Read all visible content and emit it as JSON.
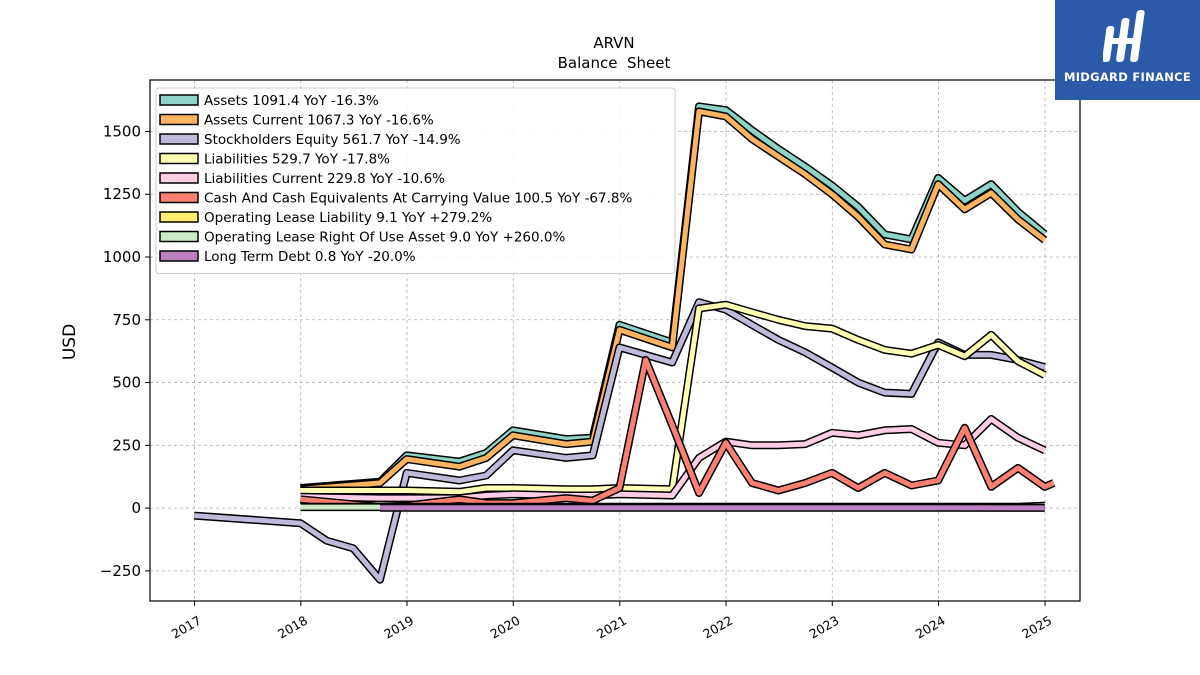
{
  "brand": {
    "name": "MIDGARD FINANCE",
    "bg_color": "#2a5aa8"
  },
  "chart_data": {
    "type": "line",
    "title": "ARVN",
    "subtitle": "Balance  Sheet",
    "ylabel": "USD",
    "xlabel": "",
    "ylim": [
      -370,
      1705
    ],
    "yticks": [
      -250,
      0,
      250,
      500,
      750,
      1000,
      1250,
      1500
    ],
    "ytick_labels": [
      "−250",
      "0",
      "250",
      "500",
      "750",
      "1000",
      "1250",
      "1500"
    ],
    "xlim": [
      "2016-08-01",
      "2025-05-01"
    ],
    "xticks": [
      "2017-01-01",
      "2018-01-01",
      "2019-01-01",
      "2020-01-01",
      "2021-01-01",
      "2022-01-01",
      "2023-01-01",
      "2024-01-01",
      "2025-01-01"
    ],
    "xtick_labels": [
      "2017",
      "2018",
      "2019",
      "2020",
      "2021",
      "2022",
      "2023",
      "2024",
      "2025"
    ],
    "grid": true,
    "legend_position": "top-left",
    "series": [
      {
        "name": "Assets",
        "legend": "Assets  1091.4 YoY -16.3%",
        "color": "#8dd3c7",
        "points": [
          [
            "2017-12-31",
            80
          ],
          [
            "2018-09-30",
            105
          ],
          [
            "2018-12-31",
            210
          ],
          [
            "2019-06-30",
            185
          ],
          [
            "2019-09-30",
            220
          ],
          [
            "2019-12-31",
            310
          ],
          [
            "2020-06-30",
            275
          ],
          [
            "2020-09-30",
            280
          ],
          [
            "2020-12-31",
            730
          ],
          [
            "2021-06-30",
            660
          ],
          [
            "2021-09-30",
            1600
          ],
          [
            "2021-12-31",
            1585
          ],
          [
            "2022-03-31",
            1505
          ],
          [
            "2022-06-30",
            1430
          ],
          [
            "2022-09-30",
            1360
          ],
          [
            "2022-12-31",
            1285
          ],
          [
            "2023-03-31",
            1200
          ],
          [
            "2023-06-30",
            1090
          ],
          [
            "2023-09-30",
            1070
          ],
          [
            "2023-12-31",
            1315
          ],
          [
            "2024-03-31",
            1225
          ],
          [
            "2024-06-30",
            1290
          ],
          [
            "2024-09-30",
            1180
          ],
          [
            "2024-12-31",
            1091.4
          ]
        ]
      },
      {
        "name": "Assets Current",
        "legend": "Assets Current  1067.3 YoY -16.6%",
        "color": "#fdb462",
        "points": [
          [
            "2017-12-31",
            75
          ],
          [
            "2018-09-30",
            100
          ],
          [
            "2018-12-31",
            195
          ],
          [
            "2019-06-30",
            165
          ],
          [
            "2019-09-30",
            200
          ],
          [
            "2019-12-31",
            290
          ],
          [
            "2020-06-30",
            255
          ],
          [
            "2020-09-30",
            265
          ],
          [
            "2020-12-31",
            710
          ],
          [
            "2021-06-30",
            640
          ],
          [
            "2021-09-30",
            1580
          ],
          [
            "2021-12-31",
            1560
          ],
          [
            "2022-03-31",
            1470
          ],
          [
            "2022-06-30",
            1400
          ],
          [
            "2022-09-30",
            1330
          ],
          [
            "2022-12-31",
            1250
          ],
          [
            "2023-03-31",
            1160
          ],
          [
            "2023-06-30",
            1050
          ],
          [
            "2023-09-30",
            1030
          ],
          [
            "2023-12-31",
            1290
          ],
          [
            "2024-03-31",
            1190
          ],
          [
            "2024-06-30",
            1255
          ],
          [
            "2024-09-30",
            1150
          ],
          [
            "2024-12-31",
            1067.3
          ]
        ]
      },
      {
        "name": "Stockholders Equity",
        "legend": "Stockholders Equity  561.7 YoY -14.9%",
        "color": "#bebada",
        "points": [
          [
            "2016-12-31",
            -30
          ],
          [
            "2017-12-31",
            -60
          ],
          [
            "2018-03-31",
            -130
          ],
          [
            "2018-06-30",
            -160
          ],
          [
            "2018-09-30",
            -285
          ],
          [
            "2018-12-31",
            140
          ],
          [
            "2019-06-30",
            110
          ],
          [
            "2019-09-30",
            130
          ],
          [
            "2019-12-31",
            230
          ],
          [
            "2020-06-30",
            200
          ],
          [
            "2020-09-30",
            210
          ],
          [
            "2020-12-31",
            640
          ],
          [
            "2021-06-30",
            580
          ],
          [
            "2021-09-30",
            820
          ],
          [
            "2021-12-31",
            790
          ],
          [
            "2022-03-31",
            730
          ],
          [
            "2022-06-30",
            670
          ],
          [
            "2022-09-30",
            620
          ],
          [
            "2022-12-31",
            560
          ],
          [
            "2023-03-31",
            500
          ],
          [
            "2023-06-30",
            460
          ],
          [
            "2023-09-30",
            455
          ],
          [
            "2023-12-31",
            660
          ],
          [
            "2024-03-31",
            610
          ],
          [
            "2024-06-30",
            610
          ],
          [
            "2024-09-30",
            590
          ],
          [
            "2024-12-31",
            561.7
          ]
        ]
      },
      {
        "name": "Liabilities",
        "legend": "Liabilities  529.7 YoY -17.8%",
        "color": "#ffffb3",
        "points": [
          [
            "2017-12-31",
            70
          ],
          [
            "2018-09-30",
            70
          ],
          [
            "2018-12-31",
            70
          ],
          [
            "2019-06-30",
            65
          ],
          [
            "2019-09-30",
            80
          ],
          [
            "2019-12-31",
            80
          ],
          [
            "2020-06-30",
            75
          ],
          [
            "2020-09-30",
            75
          ],
          [
            "2020-12-31",
            80
          ],
          [
            "2021-06-30",
            75
          ],
          [
            "2021-09-30",
            795
          ],
          [
            "2021-12-31",
            810
          ],
          [
            "2022-03-31",
            780
          ],
          [
            "2022-06-30",
            750
          ],
          [
            "2022-09-30",
            725
          ],
          [
            "2022-12-31",
            715
          ],
          [
            "2023-03-31",
            670
          ],
          [
            "2023-06-30",
            630
          ],
          [
            "2023-09-30",
            615
          ],
          [
            "2023-12-31",
            650
          ],
          [
            "2024-03-31",
            605
          ],
          [
            "2024-06-30",
            690
          ],
          [
            "2024-09-30",
            585
          ],
          [
            "2024-12-31",
            529.7
          ]
        ]
      },
      {
        "name": "Liabilities Current",
        "legend": "Liabilities Current  229.8 YoY -10.6%",
        "color": "#fccde5",
        "points": [
          [
            "2017-12-31",
            45
          ],
          [
            "2018-09-30",
            40
          ],
          [
            "2018-12-31",
            40
          ],
          [
            "2019-06-30",
            40
          ],
          [
            "2019-09-30",
            50
          ],
          [
            "2019-12-31",
            55
          ],
          [
            "2020-06-30",
            50
          ],
          [
            "2020-09-30",
            50
          ],
          [
            "2020-12-31",
            55
          ],
          [
            "2021-06-30",
            50
          ],
          [
            "2021-09-30",
            200
          ],
          [
            "2021-12-31",
            265
          ],
          [
            "2022-03-31",
            250
          ],
          [
            "2022-06-30",
            250
          ],
          [
            "2022-09-30",
            255
          ],
          [
            "2022-12-31",
            300
          ],
          [
            "2023-03-31",
            290
          ],
          [
            "2023-06-30",
            310
          ],
          [
            "2023-09-30",
            315
          ],
          [
            "2023-12-31",
            260
          ],
          [
            "2024-03-31",
            250
          ],
          [
            "2024-06-30",
            355
          ],
          [
            "2024-09-30",
            280
          ],
          [
            "2024-12-31",
            229.8
          ]
        ]
      },
      {
        "name": "Cash And Cash Equivalents At Carrying Value",
        "legend": "Cash And Cash Equivalents At Carrying Value  100.5 YoY -67.8%",
        "color": "#fb8072",
        "points": [
          [
            "2017-12-31",
            35
          ],
          [
            "2018-09-30",
            5
          ],
          [
            "2018-12-31",
            10
          ],
          [
            "2019-06-30",
            35
          ],
          [
            "2019-09-30",
            20
          ],
          [
            "2019-12-31",
            20
          ],
          [
            "2020-06-30",
            40
          ],
          [
            "2020-09-30",
            30
          ],
          [
            "2020-12-31",
            80
          ],
          [
            "2021-03-31",
            590
          ],
          [
            "2021-06-30",
            330
          ],
          [
            "2021-09-30",
            60
          ],
          [
            "2021-12-31",
            260
          ],
          [
            "2022-03-31",
            100
          ],
          [
            "2022-06-30",
            70
          ],
          [
            "2022-09-30",
            100
          ],
          [
            "2022-12-31",
            140
          ],
          [
            "2023-03-31",
            80
          ],
          [
            "2023-06-30",
            140
          ],
          [
            "2023-09-30",
            90
          ],
          [
            "2023-12-31",
            110
          ],
          [
            "2024-03-31",
            320
          ],
          [
            "2024-06-30",
            85
          ],
          [
            "2024-09-30",
            160
          ],
          [
            "2024-12-31",
            85
          ],
          [
            "2025-01-31",
            100.5
          ]
        ]
      },
      {
        "name": "Operating Lease Liability",
        "legend": "Operating Lease Liability  9.1 YoY +279.2%",
        "color": "#ffed6f",
        "points": [
          [
            "2017-12-31",
            5
          ],
          [
            "2018-09-30",
            5
          ],
          [
            "2018-12-31",
            5
          ],
          [
            "2019-06-30",
            5
          ],
          [
            "2019-09-30",
            5
          ],
          [
            "2019-12-31",
            5
          ],
          [
            "2020-06-30",
            5
          ],
          [
            "2020-09-30",
            5
          ],
          [
            "2020-12-31",
            5
          ],
          [
            "2021-06-30",
            5
          ],
          [
            "2021-09-30",
            5
          ],
          [
            "2021-12-31",
            5
          ],
          [
            "2022-03-31",
            5
          ],
          [
            "2022-06-30",
            5
          ],
          [
            "2022-09-30",
            5
          ],
          [
            "2022-12-31",
            5
          ],
          [
            "2023-03-31",
            5
          ],
          [
            "2023-06-30",
            5
          ],
          [
            "2023-09-30",
            5
          ],
          [
            "2023-12-31",
            5
          ],
          [
            "2024-03-31",
            5
          ],
          [
            "2024-06-30",
            5
          ],
          [
            "2024-09-30",
            5
          ],
          [
            "2024-12-31",
            9.1
          ]
        ]
      },
      {
        "name": "Operating Lease Right Of Use Asset",
        "legend": "Operating Lease Right Of Use Asset  9.0 YoY +260.0%",
        "color": "#ccebc5",
        "points": [
          [
            "2017-12-31",
            4
          ],
          [
            "2018-09-30",
            4
          ],
          [
            "2018-12-31",
            4
          ],
          [
            "2019-06-30",
            4
          ],
          [
            "2019-09-30",
            4
          ],
          [
            "2019-12-31",
            4
          ],
          [
            "2020-06-30",
            4
          ],
          [
            "2020-09-30",
            4
          ],
          [
            "2020-12-31",
            4
          ],
          [
            "2021-06-30",
            4
          ],
          [
            "2021-09-30",
            4
          ],
          [
            "2021-12-31",
            4
          ],
          [
            "2022-03-31",
            4
          ],
          [
            "2022-06-30",
            4
          ],
          [
            "2022-09-30",
            4
          ],
          [
            "2022-12-31",
            4
          ],
          [
            "2023-03-31",
            4
          ],
          [
            "2023-06-30",
            4
          ],
          [
            "2023-09-30",
            4
          ],
          [
            "2023-12-31",
            4
          ],
          [
            "2024-03-31",
            4
          ],
          [
            "2024-06-30",
            4
          ],
          [
            "2024-09-30",
            4
          ],
          [
            "2024-12-31",
            9.0
          ]
        ]
      },
      {
        "name": "Long Term Debt",
        "legend": "Long Term Debt  0.8 YoY -20.0%",
        "color": "#bc80bd",
        "points": [
          [
            "2018-09-30",
            1
          ],
          [
            "2019-12-31",
            1
          ],
          [
            "2020-12-31",
            1
          ],
          [
            "2021-12-31",
            1
          ],
          [
            "2022-12-31",
            1
          ],
          [
            "2023-12-31",
            1
          ],
          [
            "2024-12-31",
            0.8
          ]
        ]
      }
    ]
  }
}
